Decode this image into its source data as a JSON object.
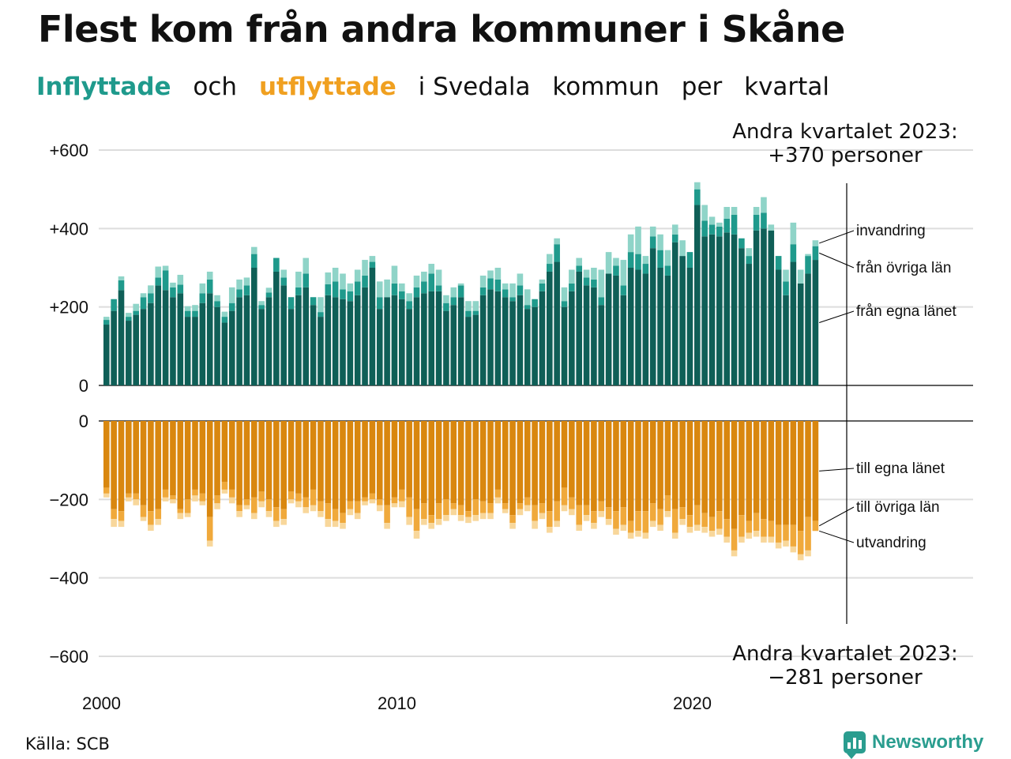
{
  "title": "Flest kom från andra kommuner i Skåne",
  "subtitle": {
    "inflow_word": "Inflyttade",
    "och": "och",
    "outflow_word": "utflyttade",
    "rest": "i Svedala",
    "rest2": "kommun",
    "rest3": "per",
    "rest4": "kvartal"
  },
  "colors": {
    "in_egna": "#0f5f57",
    "in_ovriga": "#1f9a8c",
    "in_invandring": "#8fd4c8",
    "out_egna": "#d9870f",
    "out_ovriga": "#f0a93b",
    "out_utvandring": "#f8d79b",
    "in_accent": "#1f9a8c",
    "out_accent": "#f0a020",
    "grid": "#dddddd",
    "brand": "#2a9d8f"
  },
  "annotations": {
    "top_line1": "Andra kvartalet 2023:",
    "top_line2": "+370 personer",
    "bottom_line1": "Andra kvartalet 2023:",
    "bottom_line2": "−281 personer"
  },
  "source": "Källa: SCB",
  "logo_text": "Newsworthy",
  "logo_icon": "bar-chart-icon",
  "chart_data": [
    {
      "type": "bar",
      "stacked": true,
      "title": "Inflyttade",
      "xlabel": "",
      "ylabel": "",
      "x_start": 2000,
      "x_step_quarters": 1,
      "x_ticks": [
        2000,
        2010,
        2020
      ],
      "x_tick_labels": [
        "2000",
        "2010",
        "2020"
      ],
      "y_ticks": [
        0,
        200,
        400,
        600
      ],
      "y_tick_labels": [
        "0",
        "+200",
        "+400",
        "+600"
      ],
      "ylim": [
        0,
        600
      ],
      "grid": true,
      "legend_placement": "right",
      "series": [
        {
          "name": "från egna länet",
          "values": [
            155,
            190,
            243,
            165,
            180,
            195,
            210,
            255,
            243,
            225,
            235,
            175,
            175,
            210,
            235,
            200,
            160,
            190,
            225,
            230,
            300,
            195,
            225,
            290,
            255,
            195,
            230,
            250,
            205,
            175,
            230,
            225,
            220,
            215,
            230,
            250,
            300,
            195,
            225,
            230,
            220,
            195,
            225,
            235,
            240,
            240,
            190,
            205,
            225,
            175,
            180,
            230,
            245,
            240,
            225,
            215,
            230,
            195,
            200,
            240,
            290,
            315,
            200,
            240,
            290,
            255,
            250,
            205,
            285,
            280,
            230,
            300,
            295,
            285,
            350,
            300,
            280,
            365,
            330,
            300,
            460,
            380,
            385,
            380,
            390,
            385,
            350,
            310,
            395,
            400,
            395,
            295,
            230,
            315,
            260,
            285,
            320
          ]
        },
        {
          "name": "från övriga län",
          "values": [
            12,
            30,
            25,
            10,
            10,
            30,
            25,
            20,
            50,
            25,
            22,
            15,
            15,
            25,
            35,
            15,
            15,
            20,
            20,
            25,
            35,
            10,
            12,
            35,
            20,
            30,
            20,
            35,
            20,
            12,
            28,
            40,
            25,
            25,
            35,
            30,
            15,
            30,
            0,
            30,
            20,
            20,
            25,
            30,
            45,
            15,
            20,
            20,
            30,
            15,
            10,
            20,
            28,
            30,
            20,
            10,
            25,
            10,
            20,
            20,
            20,
            45,
            15,
            20,
            15,
            20,
            20,
            20,
            0,
            25,
            25,
            40,
            40,
            25,
            30,
            45,
            25,
            20,
            0,
            40,
            40,
            40,
            25,
            25,
            35,
            50,
            25,
            20,
            40,
            40,
            0,
            35,
            35,
            45,
            0,
            45,
            35
          ]
        },
        {
          "name": "invandring",
          "values": [
            8,
            0,
            10,
            10,
            18,
            10,
            20,
            28,
            12,
            12,
            25,
            12,
            15,
            25,
            20,
            15,
            13,
            40,
            25,
            20,
            18,
            10,
            12,
            0,
            20,
            0,
            40,
            40,
            0,
            38,
            30,
            35,
            40,
            20,
            30,
            40,
            15,
            40,
            45,
            45,
            20,
            20,
            30,
            25,
            25,
            40,
            20,
            25,
            5,
            25,
            25,
            30,
            20,
            30,
            15,
            35,
            30,
            40,
            0,
            10,
            25,
            15,
            35,
            35,
            20,
            20,
            30,
            70,
            55,
            20,
            65,
            45,
            70,
            20,
            25,
            40,
            40,
            25,
            40,
            0,
            18,
            40,
            20,
            10,
            30,
            20,
            0,
            20,
            20,
            40,
            15,
            0,
            30,
            55,
            35,
            5,
            15
          ]
        }
      ]
    },
    {
      "type": "bar",
      "stacked": true,
      "title": "Utflyttade",
      "xlabel": "",
      "ylabel": "",
      "x_start": 2000,
      "x_step_quarters": 1,
      "x_ticks": [
        2000,
        2010,
        2020
      ],
      "x_tick_labels": [
        "2000",
        "2010",
        "2020"
      ],
      "y_ticks": [
        0,
        -200,
        -400,
        -600
      ],
      "y_tick_labels": [
        "0",
        "−200",
        "−400",
        "−600"
      ],
      "ylim": [
        -600,
        0
      ],
      "grid": true,
      "legend_placement": "right",
      "series": [
        {
          "name": "till egna länet",
          "values": [
            -170,
            -225,
            -230,
            -185,
            -185,
            -215,
            -230,
            -225,
            -175,
            -190,
            -225,
            -200,
            -175,
            -185,
            -245,
            -190,
            -155,
            -175,
            -215,
            -200,
            -195,
            -180,
            -200,
            -220,
            -225,
            -180,
            -185,
            -195,
            -175,
            -205,
            -210,
            -225,
            -235,
            -205,
            -205,
            -195,
            -185,
            -200,
            -215,
            -195,
            -175,
            -195,
            -225,
            -210,
            -240,
            -210,
            -200,
            -210,
            -215,
            -230,
            -200,
            -205,
            -210,
            -175,
            -210,
            -240,
            -210,
            -195,
            -215,
            -210,
            -230,
            -205,
            -170,
            -195,
            -215,
            -215,
            -230,
            -205,
            -220,
            -230,
            -220,
            -255,
            -230,
            -230,
            -210,
            -225,
            -190,
            -225,
            -220,
            -240,
            -215,
            -235,
            -245,
            -230,
            -250,
            -275,
            -240,
            -255,
            -235,
            -250,
            -255,
            -265,
            -265,
            -265,
            -280,
            -245,
            -255
          ]
        },
        {
          "name": "till övriga län",
          "values": [
            -15,
            -25,
            -25,
            -10,
            -15,
            -30,
            -35,
            -25,
            -20,
            -10,
            -10,
            -35,
            -15,
            -20,
            -60,
            -20,
            -20,
            -20,
            -15,
            -15,
            -40,
            -25,
            -30,
            -35,
            -25,
            -20,
            -20,
            -25,
            -40,
            -25,
            -40,
            -30,
            -25,
            -20,
            -30,
            -10,
            -15,
            -15,
            -45,
            -15,
            -30,
            -50,
            -55,
            -40,
            -20,
            -40,
            -40,
            -15,
            -25,
            -15,
            -40,
            -30,
            -25,
            -20,
            -15,
            -20,
            -15,
            -20,
            -40,
            -25,
            -40,
            -50,
            -45,
            -30,
            -50,
            -25,
            -30,
            -25,
            -30,
            -45,
            -45,
            -30,
            -50,
            -55,
            -45,
            -40,
            -40,
            -60,
            -30,
            -30,
            -50,
            -35,
            -35,
            -45,
            -45,
            -55,
            -55,
            -30,
            -45,
            -45,
            -40,
            -45,
            -40,
            -55,
            -60,
            -85,
            -25
          ]
        },
        {
          "name": "utvandring",
          "values": [
            -10,
            -20,
            -15,
            -10,
            -15,
            -10,
            -15,
            -15,
            -10,
            -10,
            -15,
            -10,
            -15,
            -10,
            -15,
            -15,
            -10,
            -15,
            -15,
            -10,
            -15,
            -15,
            -15,
            -15,
            -15,
            -10,
            -15,
            -15,
            -15,
            -15,
            -20,
            -15,
            -15,
            -15,
            -15,
            -10,
            -10,
            -15,
            -15,
            -10,
            -15,
            -20,
            -20,
            -15,
            -15,
            -15,
            -15,
            -15,
            -15,
            -15,
            -15,
            -15,
            -15,
            -15,
            -10,
            -15,
            -15,
            -15,
            -20,
            -15,
            -15,
            -15,
            -15,
            -15,
            -15,
            -15,
            -15,
            -15,
            -15,
            -15,
            -15,
            -15,
            -15,
            -15,
            -15,
            -15,
            -15,
            -15,
            -15,
            -15,
            -15,
            -15,
            -15,
            -15,
            -15,
            -15,
            -15,
            -15,
            -15,
            -15,
            -15,
            -15,
            -15,
            -15,
            -15,
            -15,
            -1
          ]
        }
      ]
    }
  ]
}
